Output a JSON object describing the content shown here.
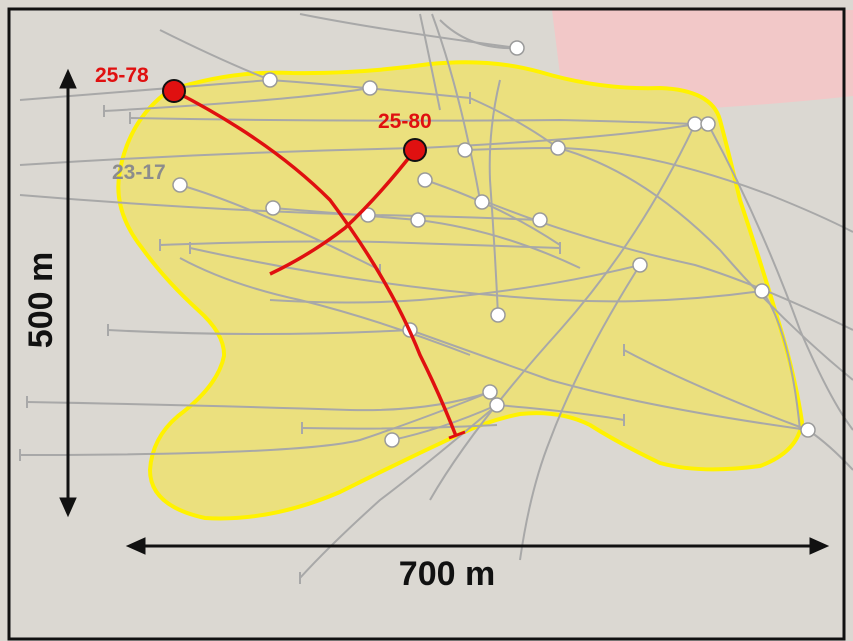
{
  "colors": {
    "background": "#dbd8d2",
    "frame": "#111111",
    "zone_fill": "#ebe07e",
    "zone_outline": "#fff200",
    "pink_zone": "#f2c8c8",
    "orange_zone": "#f3c58a",
    "trace": "#a8a8a8",
    "collar": "#ffffff",
    "highlight": "#e01010",
    "dim_label": "#8c8c8c",
    "scale_arrow": "#111111"
  },
  "labels": {
    "hole_25_78": "25-78",
    "hole_25_80": "25-80",
    "hole_23_17": "23-17"
  },
  "scale": {
    "vertical": "500 m",
    "horizontal": "700 m"
  }
}
